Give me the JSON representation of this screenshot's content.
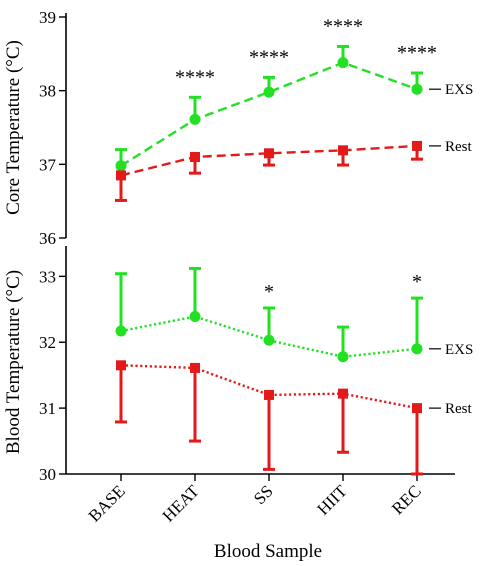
{
  "chart_data": [
    {
      "type": "line",
      "ylabel": "Core Temperature (°C)",
      "ylim": [
        36,
        39
      ],
      "yticks": [
        "36",
        "37",
        "38",
        "39"
      ],
      "categories": [
        "BASE",
        "HEAT",
        "SS",
        "HIIT",
        "REC"
      ],
      "grid": false,
      "series": [
        {
          "name": "EXS",
          "color": "#22e022",
          "marker": "circle",
          "line_style": "dashed",
          "error_direction": "up",
          "values": [
            36.98,
            37.61,
            37.98,
            38.38,
            38.02
          ],
          "errors": [
            0.22,
            0.3,
            0.2,
            0.22,
            0.22
          ]
        },
        {
          "name": "Rest",
          "color": "#e31a1a",
          "marker": "square",
          "line_style": "dashed",
          "error_direction": "down",
          "values": [
            36.85,
            37.1,
            37.15,
            37.19,
            37.25
          ],
          "errors": [
            0.34,
            0.22,
            0.16,
            0.2,
            0.18
          ]
        }
      ],
      "annotations": [
        "",
        "****",
        "****",
        "****",
        "****"
      ]
    },
    {
      "type": "line",
      "ylabel": "Blood Temperature (°C)",
      "xlabel": "Blood Sample",
      "ylim": [
        30,
        33.4
      ],
      "yticks": [
        "30",
        "31",
        "32",
        "33"
      ],
      "categories": [
        "BASE",
        "HEAT",
        "SS",
        "HIIT",
        "REC"
      ],
      "grid": false,
      "series": [
        {
          "name": "EXS",
          "color": "#22e022",
          "marker": "circle",
          "line_style": "dotted",
          "error_direction": "up",
          "values": [
            32.17,
            32.39,
            32.03,
            31.78,
            31.9
          ],
          "errors": [
            0.87,
            0.73,
            0.49,
            0.45,
            0.77
          ]
        },
        {
          "name": "Rest",
          "color": "#e31a1a",
          "marker": "square",
          "line_style": "dotted",
          "error_direction": "down",
          "values": [
            31.65,
            31.61,
            31.2,
            31.22,
            31.0
          ],
          "errors": [
            0.86,
            1.11,
            1.13,
            0.89,
            1.0
          ]
        }
      ],
      "annotations": [
        "",
        "",
        "*",
        "",
        "*"
      ]
    }
  ]
}
